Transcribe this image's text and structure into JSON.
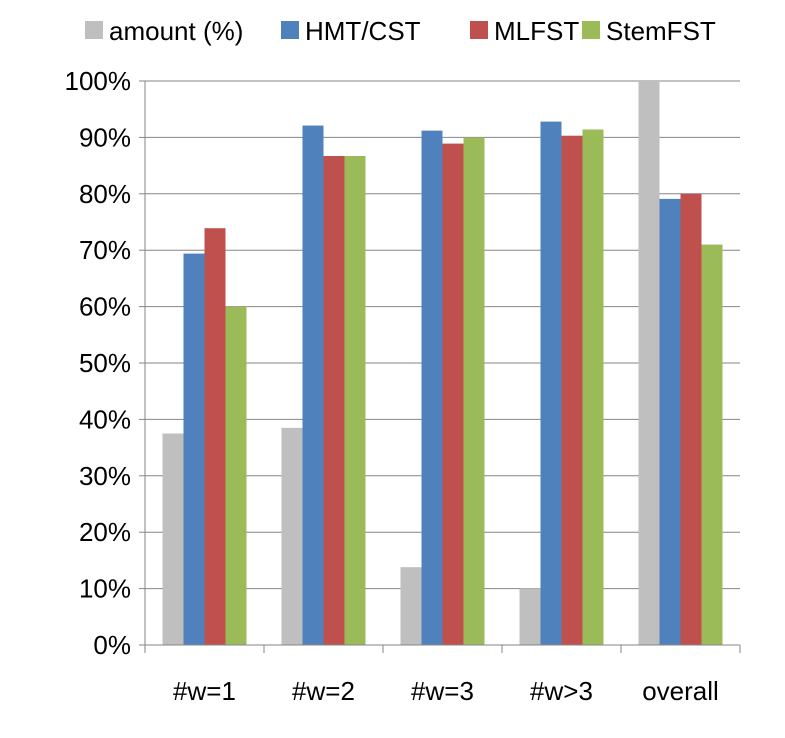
{
  "chart_data": {
    "type": "bar",
    "title": "",
    "xlabel": "",
    "ylabel": "",
    "ylim": [
      0,
      100
    ],
    "yticks": [
      0,
      10,
      20,
      30,
      40,
      50,
      60,
      70,
      80,
      90,
      100
    ],
    "ytick_suffix": "%",
    "grid": "horizontal",
    "legend_position": "top",
    "categories": [
      "#w=1",
      "#w=2",
      "#w=3",
      "#w>3",
      "overall"
    ],
    "series": [
      {
        "name": "amount (%)",
        "color": "#bfbfbf",
        "values": [
          37.5,
          38.5,
          13.8,
          10.0,
          100.0
        ]
      },
      {
        "name": "HMT/CST",
        "color": "#4f81bd",
        "values": [
          69.4,
          92.1,
          91.2,
          92.8,
          79.1
        ]
      },
      {
        "name": "MLFST",
        "color": "#c0504d",
        "values": [
          73.9,
          86.7,
          88.9,
          90.3,
          80.0
        ]
      },
      {
        "name": "StemFST",
        "color": "#9bbb59",
        "values": [
          60.0,
          86.7,
          90.0,
          91.4,
          71.0
        ]
      }
    ]
  }
}
